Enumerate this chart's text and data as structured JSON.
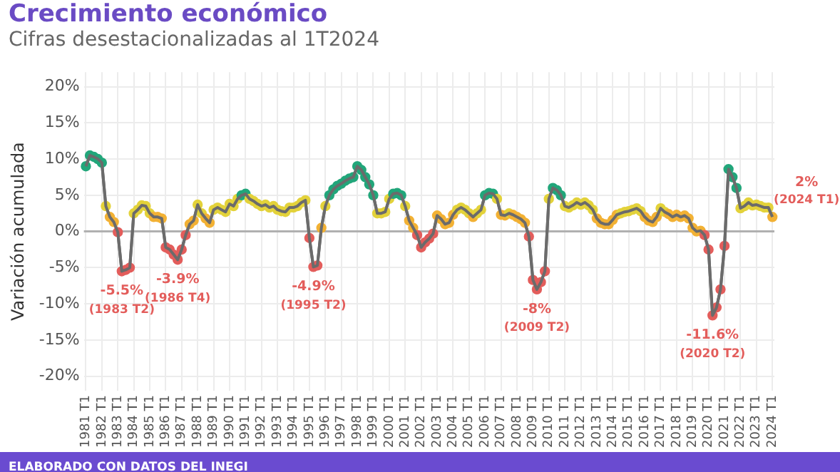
{
  "chart_data": {
    "type": "line",
    "title": "Crecimiento económico",
    "subtitle": "Cifras desestacionalizadas al 1T2024",
    "ylabel": "Variación acumulada",
    "categories": [
      "1981 T1",
      null,
      null,
      null,
      "1982 T1",
      null,
      null,
      null,
      "1983 T1",
      null,
      null,
      null,
      "1984 T1",
      null,
      null,
      null,
      "1985 T1",
      null,
      null,
      null,
      "1986 T1",
      null,
      null,
      null,
      "1987 T1",
      null,
      null,
      null,
      "1988 T1",
      null,
      null,
      null,
      "1989 T1",
      null,
      null,
      null,
      "1990 T1",
      null,
      null,
      null,
      "1991 T1",
      null,
      null,
      null,
      "1992 T1",
      null,
      null,
      null,
      "1993 T1",
      null,
      null,
      null,
      "1994 T1",
      null,
      null,
      null,
      "1995 T1",
      null,
      null,
      null,
      "1996 T1",
      null,
      null,
      null,
      "1997 T1",
      null,
      null,
      null,
      "1998 T1",
      null,
      null,
      null,
      "1999 T1",
      null,
      null,
      null,
      "2000 T1",
      null,
      null,
      null,
      "2001 T1",
      null,
      null,
      null,
      "2002 T1",
      null,
      null,
      null,
      "2003 T1",
      null,
      null,
      null,
      "2004 T1",
      null,
      null,
      null,
      "2005 T1",
      null,
      null,
      null,
      "2006 T1",
      null,
      null,
      null,
      "2007 T1",
      null,
      null,
      null,
      "2008 T1",
      null,
      null,
      null,
      "2009 T1",
      null,
      null,
      null,
      "2010 T1",
      null,
      null,
      null,
      "2011 T1",
      null,
      null,
      null,
      "2012 T1",
      null,
      null,
      null,
      "2013 T1",
      null,
      null,
      null,
      "2014 T1",
      null,
      null,
      null,
      "2015 T1",
      null,
      null,
      null,
      "2016 T1",
      null,
      null,
      null,
      "2017 T1",
      null,
      null,
      null,
      "2018 T1",
      null,
      null,
      null,
      "2019 T1",
      null,
      null,
      null,
      "2020 T1",
      null,
      null,
      null,
      "2021 T1",
      null,
      null,
      null,
      "2022 T1",
      null,
      null,
      null,
      "2023 T1",
      null,
      null,
      null,
      "2024 T1"
    ],
    "series": [
      {
        "color": "#6b6b6b",
        "values": [
          9,
          10.5,
          10.3,
          10,
          9.5,
          3.5,
          2,
          1.3,
          -0.1,
          -5.5,
          -5.3,
          -5,
          2.5,
          3,
          3.6,
          3.5,
          2.5,
          2,
          2,
          1.8,
          -2.2,
          -2.5,
          -3.2,
          -3.9,
          -2.5,
          -0.5,
          1,
          1.5,
          3.7,
          2.5,
          1.8,
          1.2,
          3,
          3.3,
          3,
          2.7,
          3.8,
          3.5,
          4.5,
          5,
          5.2,
          4.5,
          4.2,
          3.8,
          3.5,
          3.7,
          3.3,
          3.5,
          3,
          2.8,
          2.7,
          3.3,
          3.3,
          3.5,
          4,
          4.3,
          -0.9,
          -4.9,
          -4.7,
          0.5,
          3.5,
          5,
          5.8,
          6.3,
          6.6,
          7,
          7.3,
          7.5,
          9,
          8.5,
          7.5,
          6.5,
          5,
          2.5,
          2.5,
          2.7,
          4.5,
          5.2,
          5.3,
          5,
          3.5,
          1.5,
          0.5,
          -0.5,
          -2.2,
          -1.5,
          -1,
          -0.3,
          2.2,
          1.7,
          1,
          1.2,
          2.3,
          3,
          3.3,
          3,
          2.5,
          2,
          2.5,
          3,
          5,
          5.3,
          5.2,
          4.5,
          2.3,
          2.2,
          2.5,
          2.3,
          2,
          1.7,
          1.2,
          -0.7,
          -6.7,
          -8,
          -7,
          -5.5,
          4.5,
          6,
          5.7,
          5,
          3.5,
          3.3,
          3.6,
          4,
          3.7,
          4,
          3.6,
          3,
          1.8,
          1.2,
          1,
          1,
          1.6,
          2.3,
          2.5,
          2.7,
          2.8,
          3,
          3.2,
          2.8,
          2,
          1.5,
          1.3,
          2,
          3.2,
          2.7,
          2.4,
          2,
          2.3,
          2,
          2.2,
          1.8,
          0.5,
          0,
          0.1,
          -0.5,
          -2.5,
          -11.6,
          -10.5,
          -8,
          -2,
          8.6,
          7.5,
          6,
          3.2,
          3.5,
          4,
          3.6,
          3.7,
          3.5,
          3.3,
          3.3,
          2
        ],
        "colors": [
          "#21a67a",
          "#21a67a",
          "#21a67a",
          "#21a67a",
          "#21a67a",
          "#e3d23a",
          "#f2b134",
          "#f2b134",
          "#e35d5b",
          "#e35d5b",
          "#e35d5b",
          "#e35d5b",
          "#e3d23a",
          "#e3d23a",
          "#e3d23a",
          "#e3d23a",
          "#e3d23a",
          "#f2b134",
          "#f2b134",
          "#f2b134",
          "#e35d5b",
          "#e35d5b",
          "#e35d5b",
          "#e35d5b",
          "#e35d5b",
          "#e35d5b",
          "#f2b134",
          "#f2b134",
          "#e3d23a",
          "#e3d23a",
          "#f2b134",
          "#f2b134",
          "#e3d23a",
          "#e3d23a",
          "#e3d23a",
          "#e3d23a",
          "#e3d23a",
          "#e3d23a",
          "#e3d23a",
          "#21a67a",
          "#21a67a",
          "#e3d23a",
          "#e3d23a",
          "#e3d23a",
          "#e3d23a",
          "#e3d23a",
          "#e3d23a",
          "#e3d23a",
          "#e3d23a",
          "#e3d23a",
          "#e3d23a",
          "#e3d23a",
          "#e3d23a",
          "#e3d23a",
          "#e3d23a",
          "#e3d23a",
          "#e35d5b",
          "#e35d5b",
          "#e35d5b",
          "#f2b134",
          "#e3d23a",
          "#21a67a",
          "#21a67a",
          "#21a67a",
          "#21a67a",
          "#21a67a",
          "#21a67a",
          "#21a67a",
          "#21a67a",
          "#21a67a",
          "#21a67a",
          "#21a67a",
          "#21a67a",
          "#e3d23a",
          "#e3d23a",
          "#e3d23a",
          "#e3d23a",
          "#21a67a",
          "#21a67a",
          "#21a67a",
          "#e3d23a",
          "#f2b134",
          "#f2b134",
          "#e35d5b",
          "#e35d5b",
          "#e35d5b",
          "#e35d5b",
          "#e35d5b",
          "#f2b134",
          "#f2b134",
          "#f2b134",
          "#f2b134",
          "#f2b134",
          "#e3d23a",
          "#e3d23a",
          "#e3d23a",
          "#e3d23a",
          "#f2b134",
          "#e3d23a",
          "#e3d23a",
          "#21a67a",
          "#21a67a",
          "#21a67a",
          "#e3d23a",
          "#f2b134",
          "#f2b134",
          "#e3d23a",
          "#f2b134",
          "#f2b134",
          "#f2b134",
          "#f2b134",
          "#e35d5b",
          "#e35d5b",
          "#e35d5b",
          "#e35d5b",
          "#e35d5b",
          "#e3d23a",
          "#21a67a",
          "#21a67a",
          "#21a67a",
          "#e3d23a",
          "#e3d23a",
          "#e3d23a",
          "#e3d23a",
          "#e3d23a",
          "#e3d23a",
          "#e3d23a",
          "#e3d23a",
          "#f2b134",
          "#f2b134",
          "#f2b134",
          "#f2b134",
          "#f2b134",
          "#f2b134",
          "#e3d23a",
          "#e3d23a",
          "#e3d23a",
          "#e3d23a",
          "#e3d23a",
          "#e3d23a",
          "#f2b134",
          "#f2b134",
          "#f2b134",
          "#f2b134",
          "#e3d23a",
          "#e3d23a",
          "#f2b134",
          "#f2b134",
          "#f2b134",
          "#f2b134",
          "#f2b134",
          "#f2b134",
          "#f2b134",
          "#f2b134",
          "#f2b134",
          "#e35d5b",
          "#e35d5b",
          "#e35d5b",
          "#e35d5b",
          "#e35d5b",
          "#e35d5b",
          "#21a67a",
          "#21a67a",
          "#21a67a",
          "#e3d23a",
          "#e3d23a",
          "#e3d23a",
          "#e3d23a",
          "#e3d23a",
          "#e3d23a",
          "#e3d23a",
          "#e3d23a",
          "#f2b134"
        ]
      }
    ],
    "ylim": [
      -22,
      22
    ],
    "yticks": [
      {
        "value": -20,
        "label": "-20%"
      },
      {
        "value": -15,
        "label": "-15%"
      },
      {
        "value": -10,
        "label": "-10%"
      },
      {
        "value": -5,
        "label": "-5%"
      },
      {
        "value": 0,
        "label": "0%"
      },
      {
        "value": 5,
        "label": "5%"
      },
      {
        "value": 10,
        "label": "10%"
      },
      {
        "value": 15,
        "label": "15%"
      },
      {
        "value": 20,
        "label": "20%"
      }
    ],
    "grid": true,
    "legend": false,
    "marker": "circle",
    "line_style": "solid",
    "ref_lines": [
      {
        "axis": "y",
        "value": 0,
        "color": "#b0b0b0"
      }
    ],
    "annotations": [
      {
        "text": "-5.5%\n(1983 T2)",
        "y": -5.5
      },
      {
        "text": "-3.9%\n(1986 T4)",
        "y": -3.9
      },
      {
        "text": "-4.9%\n(1995 T2)",
        "y": -4.9
      },
      {
        "text": "-8%\n(2009 T2)",
        "y": -8
      },
      {
        "text": "-11.6%\n(2020 T2)",
        "y": -11.6
      },
      {
        "text": "2%\n(2024 T1)",
        "x": "2024 T1",
        "y": 2
      },
      "ELABORADO CON DATOS DEL INEGI"
    ]
  }
}
